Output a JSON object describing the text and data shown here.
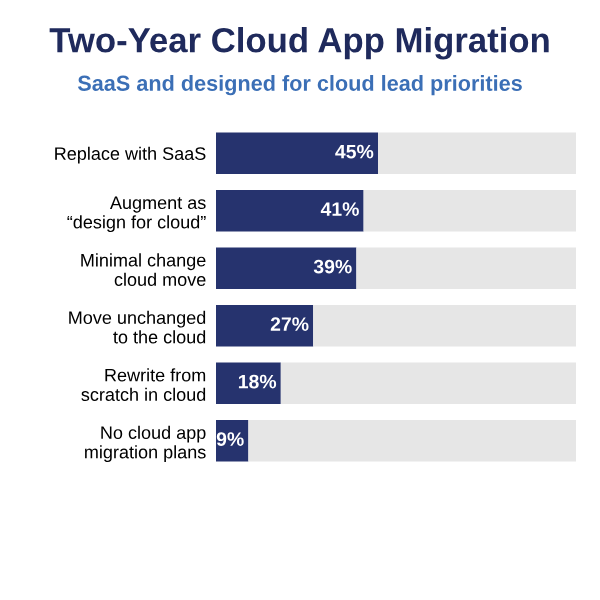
{
  "chart_data": {
    "type": "bar",
    "orientation": "horizontal",
    "stacked": true,
    "title": "Two-Year Cloud App Migration",
    "subtitle": "SaaS and designed for cloud lead priorities",
    "categories": [
      "Replace with SaaS",
      "Augment as\n“design for cloud”",
      "Minimal change\ncloud move",
      "Move unchanged\nto the cloud",
      "Rewrite from\nscratch in cloud",
      "No cloud app\nmigration plans"
    ],
    "series": [
      {
        "color": "#26336e",
        "values": [
          45,
          41,
          39,
          27,
          18,
          9
        ],
        "value_labels": [
          "45%",
          "41%",
          "39%",
          "27%",
          "18%",
          "9%"
        ]
      },
      {
        "color": "#e6e6e6",
        "values": [
          55,
          59,
          61,
          73,
          82,
          91
        ]
      }
    ],
    "tick_labels": "y",
    "grid": false,
    "legend": false
  }
}
